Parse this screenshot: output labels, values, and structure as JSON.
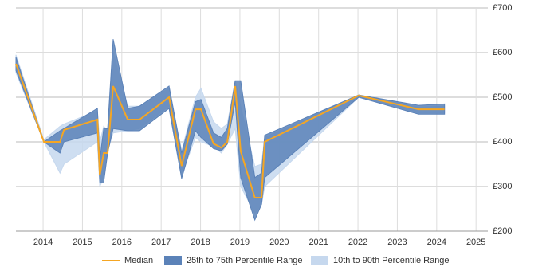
{
  "chart_data": {
    "type": "line",
    "x": [
      2013.31,
      2014.02,
      2014.43,
      2014.53,
      2015.38,
      2015.44,
      2015.54,
      2015.64,
      2015.78,
      2016.15,
      2016.45,
      2017.2,
      2017.52,
      2017.87,
      2018.01,
      2018.33,
      2018.53,
      2018.68,
      2018.88,
      2019.02,
      2019.38,
      2019.55,
      2019.63,
      2022.02,
      2023.54,
      2024.2
    ],
    "series": [
      {
        "name": "Median",
        "color": "#f5a623",
        "values": [
          575,
          400,
          400,
          427,
          450,
          325,
          375,
          375,
          525,
          450,
          450,
          500,
          346,
          473,
          473,
          396,
          387,
          400,
          525,
          379,
          275,
          275,
          400,
          504,
          473,
          473
        ]
      },
      {
        "name": "25th to 75th Percentile Range",
        "color": "#5b82b8",
        "low": [
          560,
          400,
          375,
          400,
          420,
          310,
          310,
          375,
          430,
          425,
          425,
          475,
          318,
          425,
          410,
          385,
          380,
          395,
          490,
          320,
          225,
          260,
          320,
          500,
          462,
          462
        ],
        "high": [
          590,
          400,
          425,
          430,
          475,
          360,
          430,
          430,
          630,
          475,
          480,
          525,
          375,
          490,
          495,
          420,
          410,
          430,
          537,
          537,
          320,
          330,
          415,
          505,
          482,
          485
        ]
      },
      {
        "name": "10th to 90th Percentile Range",
        "color": "#c6d8ee",
        "low": [
          555,
          400,
          330,
          350,
          400,
          300,
          320,
          380,
          420,
          425,
          430,
          480,
          325,
          410,
          400,
          390,
          375,
          395,
          430,
          300,
          240,
          260,
          300,
          500,
          465,
          465
        ],
        "high": [
          595,
          405,
          435,
          440,
          470,
          400,
          435,
          425,
          600,
          480,
          480,
          520,
          380,
          500,
          520,
          445,
          430,
          440,
          537,
          480,
          345,
          350,
          410,
          505,
          478,
          480
        ]
      }
    ],
    "xlim": [
      2013.31,
      2025.3
    ],
    "xticks": [
      2014,
      2015,
      2016,
      2017,
      2018,
      2019,
      2020,
      2021,
      2022,
      2023,
      2024,
      2025
    ],
    "ylim": [
      200,
      700
    ],
    "yticks": [
      {
        "value": 200,
        "label": "£200"
      },
      {
        "value": 300,
        "label": "£300"
      },
      {
        "value": 400,
        "label": "£400"
      },
      {
        "value": 500,
        "label": "£500"
      },
      {
        "value": 600,
        "label": "£600"
      },
      {
        "value": 700,
        "label": "£700"
      }
    ],
    "grid": true,
    "legend": "bottom"
  }
}
